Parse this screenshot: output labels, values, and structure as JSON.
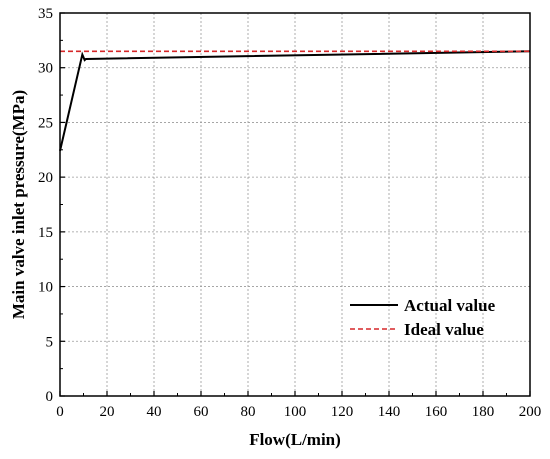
{
  "chart_data": {
    "type": "line",
    "xlabel": "Flow(L/min)",
    "ylabel": "Main valve inlet pressure(MPa)",
    "xlim": [
      0,
      200
    ],
    "ylim": [
      0,
      35
    ],
    "xticks": [
      0,
      20,
      40,
      60,
      80,
      100,
      120,
      140,
      160,
      180,
      200
    ],
    "yticks": [
      0,
      5,
      10,
      15,
      20,
      25,
      30,
      35
    ],
    "grid": true,
    "legend_position": "bottom-right",
    "series": [
      {
        "name": "Actual value",
        "style": "solid",
        "color": "#000000",
        "x": [
          0,
          9.5,
          10.5,
          11,
          200
        ],
        "y": [
          22.4,
          31.2,
          30.7,
          30.8,
          31.5
        ]
      },
      {
        "name": "Ideal value",
        "style": "dashed",
        "color": "#d62728",
        "x": [
          0,
          200
        ],
        "y": [
          31.5,
          31.5
        ]
      }
    ]
  }
}
